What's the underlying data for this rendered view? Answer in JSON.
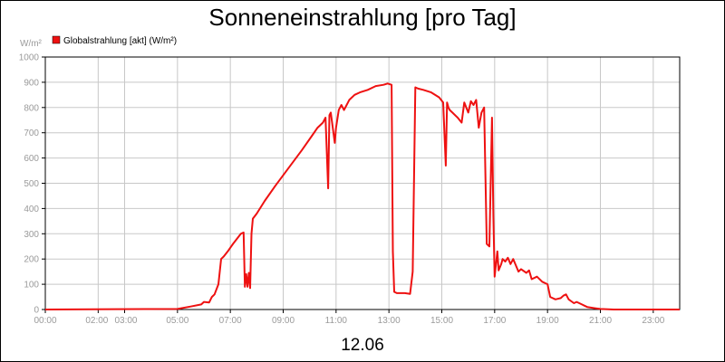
{
  "chart_data": {
    "type": "line",
    "title": "Sonneneinstrahlung [pro Tag]",
    "ylabel": "W/m²",
    "date_label": "12.06",
    "ylim": [
      0,
      1000
    ],
    "yticks": [
      0,
      100,
      200,
      300,
      400,
      500,
      600,
      700,
      800,
      900,
      1000
    ],
    "xlim": [
      0,
      24
    ],
    "xticks": [
      {
        "label": "00:00",
        "h": 0
      },
      {
        "label": "02:00",
        "h": 2
      },
      {
        "label": "03:00",
        "h": 3
      },
      {
        "label": "05:00",
        "h": 5
      },
      {
        "label": "07:00",
        "h": 7
      },
      {
        "label": "09:00",
        "h": 9
      },
      {
        "label": "11:00",
        "h": 11
      },
      {
        "label": "13:00",
        "h": 13
      },
      {
        "label": "15:00",
        "h": 15
      },
      {
        "label": "17:00",
        "h": 17
      },
      {
        "label": "19:00",
        "h": 19
      },
      {
        "label": "21:00",
        "h": 21
      },
      {
        "label": "23:00",
        "h": 23
      }
    ],
    "xgrid": [
      0,
      2,
      3,
      5,
      7,
      9,
      11,
      13,
      15,
      17,
      19,
      21,
      23
    ],
    "grid": true,
    "legend": {
      "placement": "top-left"
    },
    "colors": {
      "series": "#ee1111",
      "grid": "#c8c8c8"
    },
    "series": [
      {
        "name": "Globalstrahlung [akt] (W/m²)",
        "x": [
          0,
          5.0,
          5.5,
          5.9,
          6.0,
          6.2,
          6.3,
          6.4,
          6.55,
          6.6,
          6.65,
          6.75,
          6.9,
          7.1,
          7.4,
          7.5,
          7.55,
          7.6,
          7.65,
          7.7,
          7.75,
          7.8,
          7.85,
          8.0,
          8.3,
          8.7,
          9.2,
          9.7,
          10.1,
          10.3,
          10.5,
          10.6,
          10.7,
          10.75,
          10.8,
          10.95,
          11.0,
          11.1,
          11.2,
          11.3,
          11.5,
          11.7,
          11.9,
          12.2,
          12.5,
          12.8,
          12.95,
          13.1,
          13.15,
          13.2,
          13.3,
          13.6,
          13.8,
          13.9,
          14.0,
          14.1,
          14.3,
          14.6,
          14.9,
          15.05,
          15.15,
          15.2,
          15.25,
          15.3,
          15.4,
          15.6,
          15.75,
          15.85,
          16.0,
          16.1,
          16.2,
          16.3,
          16.4,
          16.5,
          16.6,
          16.7,
          16.8,
          16.9,
          16.95,
          17.0,
          17.1,
          17.15,
          17.25,
          17.3,
          17.4,
          17.5,
          17.6,
          17.7,
          17.9,
          18.0,
          18.2,
          18.3,
          18.4,
          18.6,
          18.8,
          19.0,
          19.1,
          19.3,
          19.5,
          19.6,
          19.7,
          19.8,
          20.0,
          20.1,
          20.3,
          20.4,
          20.5,
          20.8,
          21.0,
          21.5,
          22.0,
          24.0
        ],
        "y": [
          0,
          2,
          12,
          20,
          30,
          28,
          50,
          60,
          100,
          150,
          200,
          210,
          230,
          260,
          300,
          305,
          90,
          140,
          90,
          145,
          85,
          300,
          360,
          380,
          430,
          490,
          560,
          630,
          690,
          720,
          740,
          760,
          480,
          770,
          780,
          660,
          720,
          790,
          810,
          790,
          830,
          850,
          860,
          870,
          885,
          890,
          895,
          890,
          230,
          70,
          65,
          65,
          62,
          150,
          880,
          875,
          870,
          860,
          840,
          820,
          570,
          820,
          800,
          790,
          780,
          760,
          740,
          820,
          780,
          825,
          810,
          830,
          720,
          780,
          800,
          260,
          250,
          760,
          370,
          130,
          230,
          155,
          180,
          200,
          190,
          205,
          180,
          200,
          150,
          160,
          145,
          155,
          120,
          130,
          110,
          100,
          50,
          40,
          45,
          55,
          60,
          40,
          25,
          30,
          20,
          15,
          10,
          5,
          2,
          0,
          0,
          0
        ]
      }
    ]
  }
}
